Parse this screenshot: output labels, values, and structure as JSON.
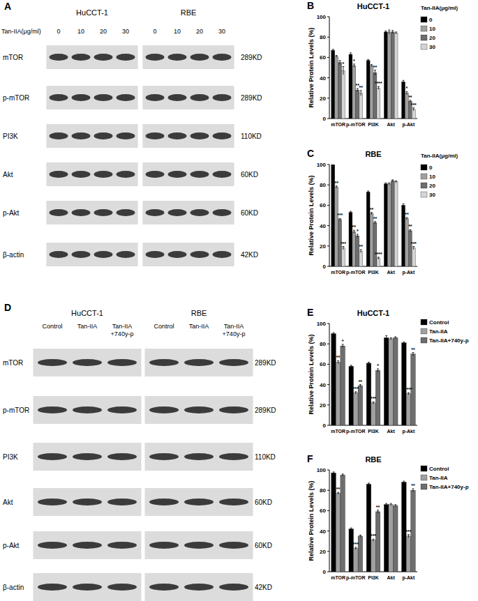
{
  "blots": [
    {
      "panel": "A",
      "treatment_label": "Tan-IIA(μg/ml)",
      "groups": [
        {
          "cell_line": "HuCCT-1",
          "lanes": [
            "0",
            "10",
            "20",
            "30"
          ]
        },
        {
          "cell_line": "RBE",
          "lanes": [
            "0",
            "10",
            "20",
            "30"
          ]
        }
      ],
      "rows": [
        {
          "name": "mTOR",
          "size": "289KD"
        },
        {
          "name": "p-mTOR",
          "size": "289KD"
        },
        {
          "name": "PI3K",
          "size": "110KD"
        },
        {
          "name": "Akt",
          "size": "60KD"
        },
        {
          "name": "p-Akt",
          "size": "60KD"
        },
        {
          "name": "β-actin",
          "size": "42KD"
        }
      ]
    },
    {
      "panel": "D",
      "groups": [
        {
          "cell_line": "HuCCT-1",
          "lanes": [
            "Control",
            "Tan-IIA",
            "Tan-IIA +740y-p"
          ]
        },
        {
          "cell_line": "RBE",
          "lanes": [
            "Control",
            "Tan-IIA",
            "Tan-IIA +740y-p"
          ]
        }
      ],
      "rows": [
        {
          "name": "mTOR",
          "size": "289KD"
        },
        {
          "name": "p-mTOR",
          "size": "289KD"
        },
        {
          "name": "PI3K",
          "size": "110KD"
        },
        {
          "name": "Akt",
          "size": "60KD"
        },
        {
          "name": "p-Akt",
          "size": "60KD"
        },
        {
          "name": "β-actin",
          "size": "42KD"
        }
      ]
    }
  ],
  "chart_data": [
    {
      "panel": "B",
      "type": "bar",
      "title": "HuCCT-1",
      "y_label": "Relative Protein Levels (%)",
      "legend_title": "Tan-IIA(μg/ml)",
      "legend": "right",
      "categories": [
        "mTOR",
        "p-mTOR",
        "PI3K",
        "Akt",
        "p-Akt"
      ],
      "ylim": [
        0,
        100
      ],
      "yticks": [
        0,
        20,
        40,
        60,
        80,
        100
      ],
      "series": [
        {
          "name": "0",
          "color": "#000000",
          "values": [
            67,
            63,
            57,
            85,
            36
          ],
          "errors": [
            1,
            1.5,
            1,
            1,
            1.5
          ],
          "significance": [
            null,
            null,
            null,
            null,
            null
          ]
        },
        {
          "name": "10",
          "color": "#a0a0a0",
          "values": [
            61,
            52,
            52,
            85,
            25
          ],
          "errors": [
            1,
            1.5,
            1,
            2,
            1.5
          ],
          "significance": [
            null,
            "*",
            null,
            null,
            "*"
          ]
        },
        {
          "name": "20",
          "color": "#6e6e6e",
          "values": [
            55,
            28,
            45,
            85,
            17
          ],
          "errors": [
            2,
            1.5,
            2.5,
            1.5,
            1
          ],
          "significance": [
            null,
            "**",
            "**",
            null,
            "**"
          ]
        },
        {
          "name": "30",
          "color": "#d4d4d4",
          "values": [
            47,
            25,
            30,
            84,
            9
          ],
          "errors": [
            4,
            2.5,
            1.5,
            1,
            1.5
          ],
          "significance": [
            "*",
            "**",
            "****",
            null,
            "***"
          ]
        }
      ]
    },
    {
      "panel": "C",
      "type": "bar",
      "title": "RBE",
      "y_label": "Relative Protein Levels (%)",
      "legend_title": "Tan-IIA(μg/ml)",
      "legend": "right",
      "categories": [
        "mTOR",
        "p-mTOR",
        "PI3K",
        "Akt",
        "p-Akt"
      ],
      "ylim": [
        0,
        100
      ],
      "yticks": [
        0,
        20,
        40,
        60,
        80,
        100
      ],
      "series": [
        {
          "name": "0",
          "color": "#000000",
          "values": [
            100,
            53,
            73,
            81,
            60
          ],
          "errors": [
            1,
            1,
            1,
            1,
            1.5
          ],
          "significance": [
            null,
            null,
            null,
            null,
            null
          ]
        },
        {
          "name": "10",
          "color": "#a0a0a0",
          "values": [
            78,
            34,
            52,
            81,
            47
          ],
          "errors": [
            1,
            1.5,
            1,
            1,
            1
          ],
          "significance": [
            "**",
            "**",
            "**",
            null,
            "**"
          ]
        },
        {
          "name": "20",
          "color": "#6e6e6e",
          "values": [
            46,
            30,
            43,
            84,
            35
          ],
          "errors": [
            1,
            1.5,
            1,
            1,
            1
          ],
          "significance": [
            "***",
            "*",
            "**",
            null,
            "**"
          ]
        },
        {
          "name": "30",
          "color": "#d4d4d4",
          "values": [
            18,
            15,
            8,
            83,
            18
          ],
          "errors": [
            1.5,
            1.5,
            1,
            1,
            1.5
          ],
          "significance": [
            "***",
            "**",
            "****",
            null,
            "***"
          ]
        }
      ]
    },
    {
      "panel": "E",
      "type": "bar",
      "title": "HuCCT-1",
      "y_label": "Relative Protein Levels (%)",
      "legend": "right",
      "categories": [
        "mTOR",
        "p-mTOR",
        "PI3K",
        "Akt",
        "p-Akt"
      ],
      "ylim": [
        0,
        100
      ],
      "yticks": [
        0,
        20,
        40,
        60,
        80,
        100
      ],
      "series": [
        {
          "name": "Control",
          "color": "#000000",
          "values": [
            90,
            58,
            61,
            86,
            81
          ],
          "errors": [
            1,
            1,
            1,
            2,
            1
          ],
          "significance": [
            null,
            null,
            null,
            null,
            null
          ]
        },
        {
          "name": "Tan-IIA",
          "color": "#a0a0a0",
          "values": [
            62,
            32,
            22,
            85,
            31
          ],
          "errors": [
            1.5,
            1,
            1,
            1,
            1
          ],
          "significance": [
            "**",
            "***",
            "***",
            null,
            "****"
          ]
        },
        {
          "name": "Tan-IIA+740y-p",
          "color": "#6e6e6e",
          "values": [
            78,
            39,
            54,
            86,
            70
          ],
          "errors": [
            1.5,
            1,
            1.5,
            1,
            1.5
          ],
          "significance": [
            "*",
            "**",
            "*",
            null,
            "**"
          ]
        }
      ]
    },
    {
      "panel": "F",
      "type": "bar",
      "title": "RBE",
      "y_label": "Relative Protein Levels (%)",
      "legend": "right",
      "categories": [
        "mTOR",
        "p-mTOR",
        "PI3K",
        "Akt",
        "p-Akt"
      ],
      "ylim": [
        0,
        100
      ],
      "yticks": [
        0,
        20,
        40,
        60,
        80,
        100
      ],
      "series": [
        {
          "name": "Control",
          "color": "#000000",
          "values": [
            97,
            42,
            86,
            66,
            88
          ],
          "errors": [
            1,
            1,
            1,
            1,
            1
          ],
          "significance": [
            null,
            null,
            null,
            null,
            null
          ]
        },
        {
          "name": "Tan-IIA",
          "color": "#a0a0a0",
          "values": [
            77,
            23,
            31,
            66,
            35
          ],
          "errors": [
            1,
            1,
            1,
            1,
            1.5
          ],
          "significance": [
            "**",
            "***",
            "***",
            null,
            "***"
          ]
        },
        {
          "name": "Tan-IIA+740y-p",
          "color": "#6e6e6e",
          "values": [
            95,
            35,
            59,
            65,
            80
          ],
          "errors": [
            1,
            1,
            1.5,
            1,
            1.5
          ],
          "significance": [
            null,
            null,
            "**",
            null,
            "**"
          ]
        }
      ]
    }
  ]
}
